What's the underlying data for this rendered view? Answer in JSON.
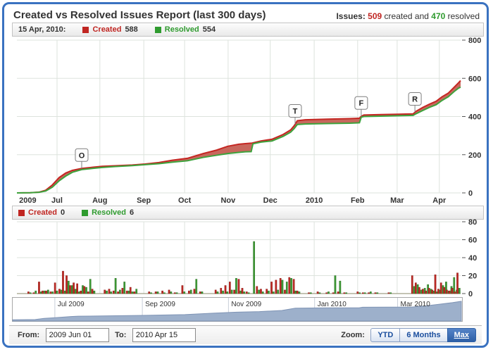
{
  "header": {
    "title": "Created vs Resolved Issues Report (last 300 days)",
    "issues_label": "Issues:",
    "created_count": "509",
    "created_text": " created and ",
    "resolved_count": "470",
    "resolved_text": " resolved"
  },
  "main_legend": {
    "date": "15 Apr, 2010:",
    "created_label": "Created",
    "created_value": "588",
    "resolved_label": "Resolved",
    "resolved_value": "554"
  },
  "bottom_legend": {
    "created_label": "Created",
    "created_value": "0",
    "resolved_label": "Resolved",
    "resolved_value": "6"
  },
  "footer": {
    "from_label": "From:",
    "from_value": "2009 Jun 01",
    "to_label": "To:",
    "to_value": "2010 Apr 15",
    "zoom_label": "Zoom:",
    "buttons": [
      {
        "label": "YTD",
        "active": false
      },
      {
        "label": "6 Months",
        "active": false
      },
      {
        "label": "Max",
        "active": true
      }
    ]
  },
  "colors": {
    "created": "#c42723",
    "resolved": "#3da33d",
    "area_fill": "#c2574b",
    "grid": "#dde3dd",
    "bar_red": "#c02a24",
    "bar_red_stroke": "#8c1b17",
    "bar_green": "#3f9c36",
    "bar_green_stroke": "#2a7123",
    "nav_fill": "#9db0cb",
    "nav_stroke": "#7e93b4",
    "flag_stroke": "#808080",
    "accent_border": "#3a72c0"
  },
  "chart_data": [
    {
      "type": "area",
      "title": "Cumulative created vs resolved issues, 2009-06-01 to 2010-04-15",
      "x_unit": "fraction of date range 2009-06-01 .. 2010-04-15",
      "ylim": [
        0,
        880
      ],
      "yticks": [
        0,
        200,
        400,
        600,
        800
      ],
      "legend_position": "top-left",
      "grid": true,
      "xticks": [
        {
          "f": 0.005,
          "label": "2009",
          "grid": false
        },
        {
          "f": 0.0905,
          "label": "Jul"
        },
        {
          "f": 0.187,
          "label": "Aug"
        },
        {
          "f": 0.286,
          "label": "Sep"
        },
        {
          "f": 0.378,
          "label": "Oct"
        },
        {
          "f": 0.476,
          "label": "Nov"
        },
        {
          "f": 0.571,
          "label": "Dec"
        },
        {
          "f": 0.67,
          "label": "2010"
        },
        {
          "f": 0.768,
          "label": "Feb"
        },
        {
          "f": 0.857,
          "label": "Mar"
        },
        {
          "f": 0.952,
          "label": "Apr"
        }
      ],
      "flags": [
        {
          "f": 0.146,
          "label": "O"
        },
        {
          "f": 0.627,
          "label": "T"
        },
        {
          "f": 0.776,
          "label": "F"
        },
        {
          "f": 0.897,
          "label": "R"
        }
      ],
      "series": [
        {
          "name": "Created",
          "final_value": 588,
          "points": [
            [
              0,
              0
            ],
            [
              0.03,
              1
            ],
            [
              0.05,
              4
            ],
            [
              0.065,
              14
            ],
            [
              0.08,
              42
            ],
            [
              0.095,
              80
            ],
            [
              0.11,
              104
            ],
            [
              0.125,
              118
            ],
            [
              0.146,
              128
            ],
            [
              0.17,
              134
            ],
            [
              0.192,
              139
            ],
            [
              0.22,
              142
            ],
            [
              0.26,
              146
            ],
            [
              0.289,
              151
            ],
            [
              0.32,
              159
            ],
            [
              0.35,
              171
            ],
            [
              0.384,
              181
            ],
            [
              0.42,
              206
            ],
            [
              0.45,
              224
            ],
            [
              0.475,
              244
            ],
            [
              0.5,
              255
            ],
            [
              0.515,
              258
            ],
            [
              0.53,
              261
            ],
            [
              0.55,
              272
            ],
            [
              0.575,
              281
            ],
            [
              0.6,
              306
            ],
            [
              0.617,
              330
            ],
            [
              0.625,
              352
            ],
            [
              0.632,
              378
            ],
            [
              0.65,
              383
            ],
            [
              0.7,
              386
            ],
            [
              0.75,
              389
            ],
            [
              0.772,
              391
            ],
            [
              0.776,
              401
            ],
            [
              0.782,
              408
            ],
            [
              0.82,
              410
            ],
            [
              0.86,
              412
            ],
            [
              0.893,
              414
            ],
            [
              0.9,
              428
            ],
            [
              0.915,
              448
            ],
            [
              0.93,
              465
            ],
            [
              0.945,
              480
            ],
            [
              0.958,
              503
            ],
            [
              0.972,
              522
            ],
            [
              0.985,
              552
            ],
            [
              0.995,
              576
            ],
            [
              1,
              588
            ]
          ]
        },
        {
          "name": "Resolved",
          "final_value": 554,
          "points": [
            [
              0,
              0
            ],
            [
              0.03,
              1
            ],
            [
              0.05,
              3
            ],
            [
              0.065,
              10
            ],
            [
              0.08,
              30
            ],
            [
              0.095,
              63
            ],
            [
              0.11,
              88
            ],
            [
              0.125,
              108
            ],
            [
              0.146,
              122
            ],
            [
              0.17,
              128
            ],
            [
              0.192,
              133
            ],
            [
              0.22,
              138
            ],
            [
              0.26,
              143
            ],
            [
              0.289,
              148
            ],
            [
              0.32,
              153
            ],
            [
              0.35,
              161
            ],
            [
              0.384,
              168
            ],
            [
              0.42,
              186
            ],
            [
              0.45,
              197
            ],
            [
              0.475,
              206
            ],
            [
              0.5,
              212
            ],
            [
              0.515,
              215
            ],
            [
              0.528,
              216
            ],
            [
              0.532,
              257
            ],
            [
              0.55,
              266
            ],
            [
              0.575,
              272
            ],
            [
              0.6,
              296
            ],
            [
              0.617,
              318
            ],
            [
              0.625,
              337
            ],
            [
              0.632,
              358
            ],
            [
              0.65,
              361
            ],
            [
              0.7,
              363
            ],
            [
              0.75,
              365
            ],
            [
              0.772,
              367
            ],
            [
              0.776,
              396
            ],
            [
              0.782,
              400
            ],
            [
              0.82,
              402
            ],
            [
              0.86,
              404
            ],
            [
              0.893,
              406
            ],
            [
              0.9,
              415
            ],
            [
              0.915,
              432
            ],
            [
              0.93,
              448
            ],
            [
              0.945,
              462
            ],
            [
              0.958,
              484
            ],
            [
              0.972,
              503
            ],
            [
              0.985,
              530
            ],
            [
              0.995,
              548
            ],
            [
              1,
              554
            ]
          ]
        }
      ]
    },
    {
      "type": "bar",
      "title": "Daily created (red) and resolved (green) issues",
      "ylim": [
        0,
        88
      ],
      "yticks": [
        0,
        20,
        40,
        60,
        80
      ],
      "grid": true,
      "points_format": "[x_fraction, created, resolved]",
      "points": [
        [
          0.028,
          2,
          1
        ],
        [
          0.04,
          1,
          3
        ],
        [
          0.052,
          13,
          2
        ],
        [
          0.06,
          3,
          3
        ],
        [
          0.068,
          3,
          4
        ],
        [
          0.078,
          2,
          2
        ],
        [
          0.088,
          12,
          3
        ],
        [
          0.098,
          5,
          4
        ],
        [
          0.106,
          25,
          3
        ],
        [
          0.114,
          20,
          14
        ],
        [
          0.122,
          9,
          9
        ],
        [
          0.13,
          12,
          5
        ],
        [
          0.138,
          11,
          2
        ],
        [
          0.146,
          3,
          9
        ],
        [
          0.154,
          8,
          7
        ],
        [
          0.163,
          2,
          16
        ],
        [
          0.172,
          5,
          3
        ],
        [
          0.2,
          4,
          3
        ],
        [
          0.21,
          5,
          2
        ],
        [
          0.22,
          3,
          17
        ],
        [
          0.23,
          2,
          4
        ],
        [
          0.24,
          6,
          13
        ],
        [
          0.25,
          3,
          3
        ],
        [
          0.258,
          7,
          2
        ],
        [
          0.267,
          2,
          5
        ],
        [
          0.3,
          2,
          1
        ],
        [
          0.315,
          2,
          2
        ],
        [
          0.33,
          3,
          1
        ],
        [
          0.345,
          4,
          2
        ],
        [
          0.358,
          1,
          1
        ],
        [
          0.375,
          9,
          2
        ],
        [
          0.39,
          3,
          4
        ],
        [
          0.402,
          5,
          16
        ],
        [
          0.415,
          2,
          2
        ],
        [
          0.45,
          4,
          2
        ],
        [
          0.462,
          6,
          3
        ],
        [
          0.472,
          9,
          2
        ],
        [
          0.482,
          13,
          4
        ],
        [
          0.492,
          4,
          17
        ],
        [
          0.502,
          16,
          3
        ],
        [
          0.51,
          6,
          2
        ],
        [
          0.52,
          2,
          1
        ],
        [
          0.532,
          0,
          58
        ],
        [
          0.543,
          8,
          4
        ],
        [
          0.552,
          5,
          2
        ],
        [
          0.565,
          5,
          3
        ],
        [
          0.576,
          13,
          2
        ],
        [
          0.586,
          15,
          4
        ],
        [
          0.596,
          17,
          15
        ],
        [
          0.606,
          4,
          13
        ],
        [
          0.616,
          18,
          17
        ],
        [
          0.626,
          16,
          3
        ],
        [
          0.634,
          3,
          2
        ],
        [
          0.66,
          1,
          1
        ],
        [
          0.68,
          2,
          1
        ],
        [
          0.7,
          1,
          2
        ],
        [
          0.715,
          1,
          20
        ],
        [
          0.726,
          2,
          14
        ],
        [
          0.74,
          1,
          1
        ],
        [
          0.77,
          2,
          1
        ],
        [
          0.782,
          1,
          1
        ],
        [
          0.795,
          1,
          2
        ],
        [
          0.81,
          1,
          1
        ],
        [
          0.84,
          1,
          1
        ],
        [
          0.893,
          20,
          8
        ],
        [
          0.901,
          12,
          10
        ],
        [
          0.909,
          7,
          4
        ],
        [
          0.917,
          5,
          6
        ],
        [
          0.924,
          3,
          10
        ],
        [
          0.931,
          6,
          5
        ],
        [
          0.938,
          4,
          3
        ],
        [
          0.945,
          21,
          2
        ],
        [
          0.952,
          5,
          4
        ],
        [
          0.958,
          12,
          9
        ],
        [
          0.965,
          7,
          13
        ],
        [
          0.971,
          4,
          3
        ],
        [
          0.977,
          3,
          8
        ],
        [
          0.983,
          6,
          18
        ],
        [
          0.989,
          2,
          4
        ],
        [
          0.995,
          23,
          6
        ]
      ]
    },
    {
      "type": "area",
      "title": "Navigator overview (cumulative silhouette)",
      "labels": [
        {
          "f": 0.094,
          "label": "Jul 2009"
        },
        {
          "f": 0.289,
          "label": "Sep 2009"
        },
        {
          "f": 0.481,
          "label": "Nov 2009"
        },
        {
          "f": 0.673,
          "label": "Jan 2010"
        },
        {
          "f": 0.858,
          "label": "Mar 2010"
        }
      ],
      "points": [
        [
          0,
          0.03
        ],
        [
          0.05,
          0.04
        ],
        [
          0.07,
          0.1
        ],
        [
          0.095,
          0.14
        ],
        [
          0.13,
          0.2
        ],
        [
          0.146,
          0.22
        ],
        [
          0.2,
          0.23
        ],
        [
          0.29,
          0.26
        ],
        [
          0.384,
          0.3
        ],
        [
          0.45,
          0.38
        ],
        [
          0.5,
          0.43
        ],
        [
          0.55,
          0.46
        ],
        [
          0.6,
          0.52
        ],
        [
          0.63,
          0.64
        ],
        [
          0.7,
          0.655
        ],
        [
          0.772,
          0.66
        ],
        [
          0.78,
          0.69
        ],
        [
          0.89,
          0.7
        ],
        [
          0.92,
          0.76
        ],
        [
          0.95,
          0.84
        ],
        [
          0.98,
          0.93
        ],
        [
          1,
          1
        ]
      ]
    }
  ]
}
